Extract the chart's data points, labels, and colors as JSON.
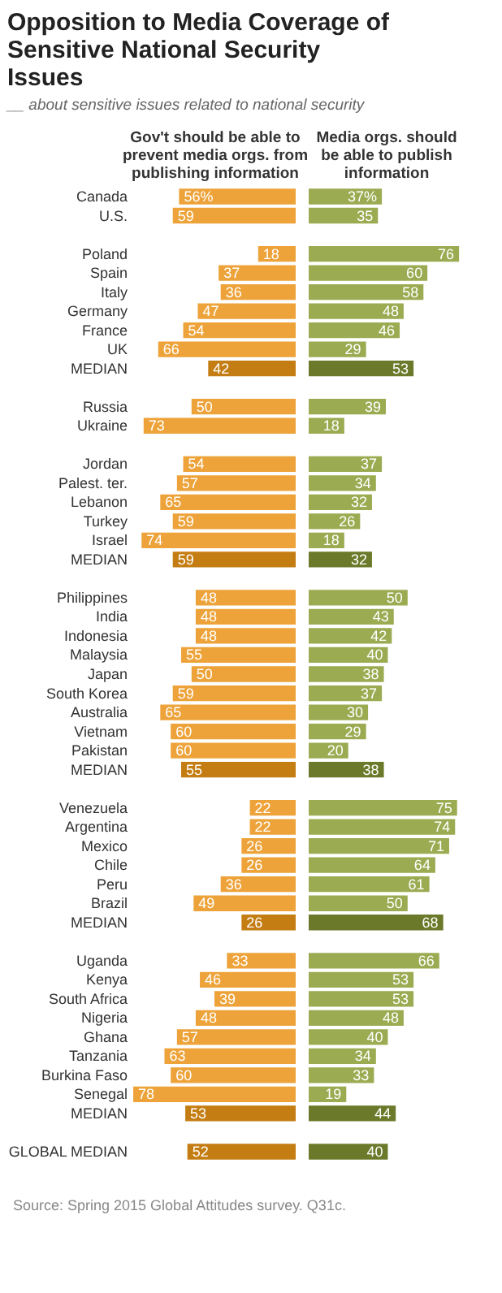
{
  "chart_data": [
    {
      "type": "bar",
      "orientation": "horizontal",
      "title": "Opposition to Media Coverage of Sensitive National Security Issues",
      "subtitle": "__ about sensitive issues related to national security",
      "xlabel": "Gov't should be able to prevent media orgs. from publishing information",
      "annotations": [
        "Source: Spring 2015 Global Attitudes survey. Q31c."
      ],
      "tick_labels": "y",
      "categories": [
        "Canada",
        "U.S.",
        null,
        "Poland",
        "Spain",
        "Italy",
        "Germany",
        "France",
        "UK",
        "MEDIAN",
        null,
        "Russia",
        "Ukraine",
        null,
        "Jordan",
        "Palest. ter.",
        "Lebanon",
        "Turkey",
        "Israel",
        "MEDIAN",
        null,
        "Philippines",
        "India",
        "Indonesia",
        "Malaysia",
        "Japan",
        "South Korea",
        "Australia",
        "Vietnam",
        "Pakistan",
        "MEDIAN",
        null,
        "Venezuela",
        "Argentina",
        "Mexico",
        "Chile",
        "Peru",
        "Brazil",
        "MEDIAN",
        null,
        "Uganda",
        "Kenya",
        "South Africa",
        "Nigeria",
        "Ghana",
        "Tanzania",
        "Burkina Faso",
        "Senegal",
        "MEDIAN",
        null,
        "GLOBAL MEDIAN"
      ],
      "values": [
        56,
        59,
        null,
        18,
        37,
        36,
        47,
        54,
        66,
        42,
        null,
        50,
        73,
        null,
        54,
        57,
        65,
        59,
        74,
        59,
        null,
        48,
        48,
        48,
        55,
        50,
        59,
        65,
        60,
        60,
        55,
        null,
        22,
        22,
        26,
        26,
        36,
        49,
        26,
        null,
        33,
        46,
        39,
        48,
        57,
        63,
        60,
        78,
        53,
        null,
        52
      ],
      "value_labels": [
        "56%",
        "59",
        null,
        "18",
        "37",
        "36",
        "47",
        "54",
        "66",
        "42",
        null,
        "50",
        "73",
        null,
        "54",
        "57",
        "65",
        "59",
        "74",
        "59",
        null,
        "48",
        "48",
        "48",
        "55",
        "50",
        "59",
        "65",
        "60",
        "60",
        "55",
        null,
        "22",
        "22",
        "26",
        "26",
        "36",
        "49",
        "26",
        null,
        "33",
        "46",
        "39",
        "48",
        "57",
        "63",
        "60",
        "78",
        "53",
        null,
        "52"
      ],
      "colors": [
        "#eda33a",
        "#eda33a",
        null,
        "#eda33a",
        "#eda33a",
        "#eda33a",
        "#eda33a",
        "#eda33a",
        "#eda33a",
        "#c47d12",
        null,
        "#eda33a",
        "#eda33a",
        null,
        "#eda33a",
        "#eda33a",
        "#eda33a",
        "#eda33a",
        "#eda33a",
        "#c47d12",
        null,
        "#eda33a",
        "#eda33a",
        "#eda33a",
        "#eda33a",
        "#eda33a",
        "#eda33a",
        "#eda33a",
        "#eda33a",
        "#eda33a",
        "#c47d12",
        null,
        "#eda33a",
        "#eda33a",
        "#eda33a",
        "#eda33a",
        "#eda33a",
        "#eda33a",
        "#c47d12",
        null,
        "#eda33a",
        "#eda33a",
        "#eda33a",
        "#eda33a",
        "#eda33a",
        "#eda33a",
        "#eda33a",
        "#eda33a",
        "#c47d12",
        null,
        "#c47d12"
      ]
    },
    {
      "type": "bar",
      "orientation": "horizontal",
      "xlabel": "Media orgs. should be able to publish information",
      "tick_labels": false,
      "categories": [
        null,
        null,
        null,
        null,
        null,
        null,
        null,
        null,
        null,
        null,
        null,
        null,
        null,
        null,
        null,
        null,
        null,
        null,
        null,
        null,
        null,
        null,
        null,
        null,
        null,
        null,
        null,
        null,
        null,
        null,
        null,
        null,
        null,
        null,
        null,
        null,
        null,
        null,
        null,
        null,
        null,
        null,
        null,
        null,
        null,
        null,
        null,
        null,
        null,
        null,
        null
      ],
      "values": [
        37,
        35,
        null,
        76,
        60,
        58,
        48,
        46,
        29,
        53,
        null,
        39,
        18,
        null,
        37,
        34,
        32,
        26,
        18,
        32,
        null,
        50,
        43,
        42,
        40,
        38,
        37,
        30,
        29,
        20,
        38,
        null,
        75,
        74,
        71,
        64,
        61,
        50,
        68,
        null,
        66,
        53,
        53,
        48,
        40,
        34,
        33,
        19,
        44,
        null,
        40
      ],
      "value_labels": [
        "37%",
        "35",
        null,
        "76",
        "60",
        "58",
        "48",
        "46",
        "29",
        "53",
        null,
        "39",
        "18",
        null,
        "37",
        "34",
        "32",
        "26",
        "18",
        "32",
        null,
        "50",
        "43",
        "42",
        "40",
        "38",
        "37",
        "30",
        "29",
        "20",
        "38",
        null,
        "75",
        "74",
        "71",
        "64",
        "61",
        "50",
        "68",
        null,
        "66",
        "53",
        "53",
        "48",
        "40",
        "34",
        "33",
        "19",
        "44",
        null,
        "40"
      ],
      "colors": [
        "#9bab52",
        "#9bab52",
        null,
        "#9bab52",
        "#9bab52",
        "#9bab52",
        "#9bab52",
        "#9bab52",
        "#9bab52",
        "#6b7a2a",
        null,
        "#9bab52",
        "#9bab52",
        null,
        "#9bab52",
        "#9bab52",
        "#9bab52",
        "#9bab52",
        "#9bab52",
        "#6b7a2a",
        null,
        "#9bab52",
        "#9bab52",
        "#9bab52",
        "#9bab52",
        "#9bab52",
        "#9bab52",
        "#9bab52",
        "#9bab52",
        "#9bab52",
        "#6b7a2a",
        null,
        "#9bab52",
        "#9bab52",
        "#9bab52",
        "#9bab52",
        "#9bab52",
        "#9bab52",
        "#6b7a2a",
        null,
        "#9bab52",
        "#9bab52",
        "#9bab52",
        "#9bab52",
        "#9bab52",
        "#9bab52",
        "#9bab52",
        "#9bab52",
        "#6b7a2a",
        null,
        "#6b7a2a"
      ]
    }
  ]
}
